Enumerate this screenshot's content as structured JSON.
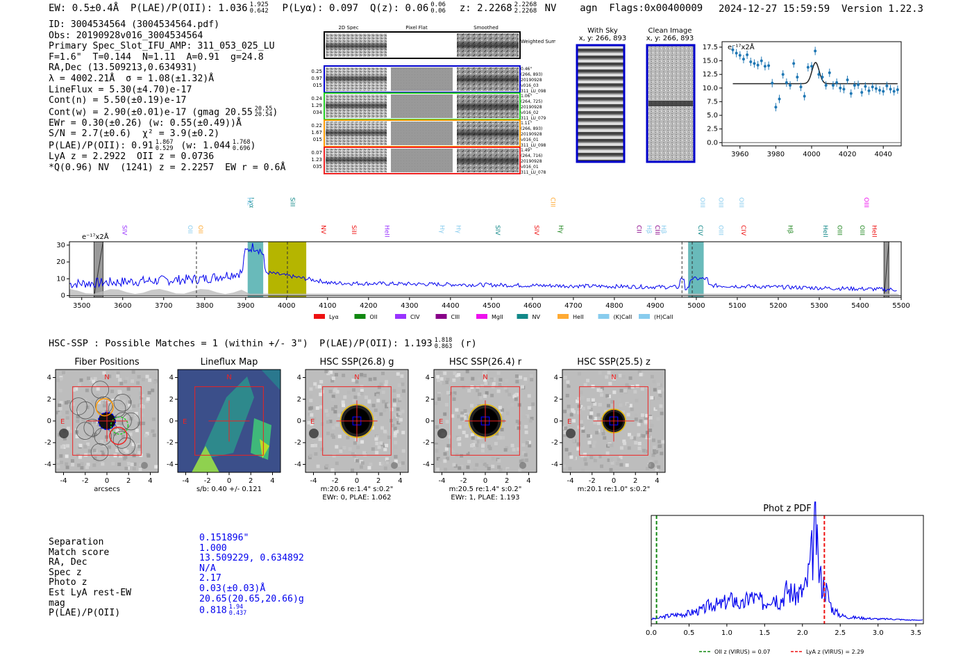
{
  "header": {
    "line": "EW: 0.5±0.4Å  P(LAE)/P(OII): 1.036",
    "plae_sup": "1.925",
    "plae_sub": "0.642",
    "plya": "P(Lyα): 0.097",
    "qz": "Q(z): 0.06",
    "qz_sup": "0.06",
    "qz_sub": "0.06",
    "z": "z: 2.2268",
    "z_sup": "2.2268",
    "z_sub": "2.2268",
    "tail": "NV    agn  Flags:0x00400009",
    "date_version": "2024-12-27 15:59:59  Version 1.22.3"
  },
  "info": {
    "id": "ID: 3004534564 (3004534564.pdf)",
    "obs": "Obs: 20190928v016_3004534564",
    "slot": "Primary Spec_Slot_IFU_AMP: 311_053_025_LU",
    "params": "F=1.6\"  T=0.144  N=1.11  A=0.91  g=24.8",
    "radec": "RA,Dec (13.509213,0.634931)",
    "lambda": "λ = 4002.21Å  σ = 1.08(±1.32)Å",
    "lineflux": "LineFlux = 5.30(±4.70)e-17",
    "contn": "Cont(n) = 5.50(±0.19)e-17",
    "contw": "Cont(w) = 2.90(±0.01)e-17 (gmag 20.55",
    "contw_sup": "20.55",
    "contw_sub": "20.54",
    "ewr": "EWr = 0.30(±0.26) (w: 0.55(±0.49))Å",
    "sn": "S/N = 2.7(±0.6)  χ² = 3.9(±0.2)",
    "plae": "P(LAE)/P(OII): 0.91",
    "plae_sup": "1.867",
    "plae_sub": "0.529",
    "plae_w": "(w: 1.044",
    "plae_w_sup": "1.768",
    "plae_w_sub": "0.696",
    "lyaz": "LyA z = 2.2922  OII z = 0.0736",
    "qnv": "*Q(0.96) NV  (1241) z = 2.2257  EW r = 0.6Å"
  },
  "cutouts": {
    "headers": [
      "2D Spec",
      "Pixel Flat",
      "Smoothed"
    ],
    "weighted": "Weighted Sum",
    "rows": [
      {
        "left": [
          "0.25",
          "0.97",
          "015"
        ],
        "right": [
          "0.46\"",
          "(266, 893)",
          "20190928",
          "v016_03",
          "311_LU_098"
        ],
        "color": "#0000cc"
      },
      {
        "left": [
          "0.24",
          "1.29",
          "034"
        ],
        "right": [
          "1.06\"",
          "(264, 725)",
          "20190928",
          "v016_02",
          "311_LU_079"
        ],
        "color": "#22cc22"
      },
      {
        "left": [
          "0.22",
          "1.67",
          "015"
        ],
        "right": [
          "1.11\"",
          "(266, 893)",
          "20190928",
          "v016_01",
          "311_LU_098"
        ],
        "color": "#ff9900"
      },
      {
        "left": [
          "0.07",
          "1.23",
          "035"
        ],
        "right": [
          "1.49\"",
          "(264, 716)",
          "20190928",
          "v016_01",
          "311_LU_078"
        ],
        "color": "#ee2222"
      }
    ],
    "with_sky": "With Sky",
    "clean": "Clean Image",
    "xy": "x, y: 266, 893"
  },
  "zoom_spec": {
    "unit": "e⁻¹⁷x2Å",
    "xticks": [
      "3960",
      "3980",
      "4000",
      "4020",
      "4040"
    ],
    "yticks": [
      "0.0",
      "2.5",
      "5.0",
      "7.5",
      "10.0",
      "12.5",
      "15.0",
      "17.5"
    ],
    "xlim": [
      3950,
      4050
    ],
    "ylim": [
      -0.6,
      18.5
    ],
    "points": [
      {
        "x": 3956,
        "y": 17.0
      },
      {
        "x": 3958,
        "y": 16.4
      },
      {
        "x": 3960,
        "y": 16.0
      },
      {
        "x": 3962,
        "y": 15.3
      },
      {
        "x": 3964,
        "y": 16.1
      },
      {
        "x": 3966,
        "y": 14.8
      },
      {
        "x": 3968,
        "y": 14.5
      },
      {
        "x": 3970,
        "y": 14.2
      },
      {
        "x": 3972,
        "y": 15.0
      },
      {
        "x": 3974,
        "y": 14.0
      },
      {
        "x": 3976,
        "y": 14.1
      },
      {
        "x": 3978,
        "y": 10.9
      },
      {
        "x": 3980,
        "y": 6.5
      },
      {
        "x": 3982,
        "y": 8.0
      },
      {
        "x": 3984,
        "y": 12.5
      },
      {
        "x": 3986,
        "y": 11.0
      },
      {
        "x": 3988,
        "y": 10.5
      },
      {
        "x": 3990,
        "y": 14.5
      },
      {
        "x": 3992,
        "y": 12.0
      },
      {
        "x": 3994,
        "y": 10.2
      },
      {
        "x": 3996,
        "y": 8.5
      },
      {
        "x": 3998,
        "y": 13.8
      },
      {
        "x": 4000,
        "y": 14.0
      },
      {
        "x": 4002,
        "y": 16.8
      },
      {
        "x": 4004,
        "y": 12.5
      },
      {
        "x": 4006,
        "y": 12.0
      },
      {
        "x": 4008,
        "y": 10.5
      },
      {
        "x": 4010,
        "y": 12.8
      },
      {
        "x": 4012,
        "y": 10.5
      },
      {
        "x": 4014,
        "y": 11.0
      },
      {
        "x": 4016,
        "y": 10.0
      },
      {
        "x": 4018,
        "y": 9.8
      },
      {
        "x": 4020,
        "y": 11.5
      },
      {
        "x": 4022,
        "y": 9.0
      },
      {
        "x": 4024,
        "y": 10.5
      },
      {
        "x": 4026,
        "y": 10.6
      },
      {
        "x": 4028,
        "y": 9.2
      },
      {
        "x": 4030,
        "y": 10.3
      },
      {
        "x": 4032,
        "y": 9.5
      },
      {
        "x": 4034,
        "y": 10.2
      },
      {
        "x": 4036,
        "y": 9.9
      },
      {
        "x": 4038,
        "y": 9.6
      },
      {
        "x": 4040,
        "y": 9.4
      },
      {
        "x": 4042,
        "y": 10.4
      },
      {
        "x": 4044,
        "y": 9.8
      },
      {
        "x": 4046,
        "y": 9.4
      },
      {
        "x": 4048,
        "y": 9.7
      }
    ]
  },
  "full_spec": {
    "unit": "e⁻¹⁷x2Å",
    "xlim": [
      3470,
      5500
    ],
    "ylim": [
      -1,
      32
    ],
    "xticks": [
      "3500",
      "3600",
      "3700",
      "3800",
      "3900",
      "4000",
      "4100",
      "4200",
      "4300",
      "4400",
      "4500",
      "4600",
      "4700",
      "4800",
      "4900",
      "5000",
      "5100",
      "5200",
      "5300",
      "5400",
      "5500"
    ],
    "yticks": [
      "0",
      "10",
      "20",
      "30"
    ],
    "lines_low": [
      {
        "label": "SIV",
        "x": 3600,
        "c": "#9933ff"
      },
      {
        "label": "OII",
        "x": 3760,
        "c": "#88ccee"
      },
      {
        "label": "OII",
        "x": 3785,
        "c": "#ffaa33"
      },
      {
        "label": "NV",
        "x": 4085,
        "c": "#ee1111"
      },
      {
        "label": "SiII",
        "x": 4160,
        "c": "#ee1111"
      },
      {
        "label": "HeII",
        "x": 4240,
        "c": "#9933ff"
      },
      {
        "label": "Hγ",
        "x": 4375,
        "c": "#88ccee"
      },
      {
        "label": "Hγ",
        "x": 4415,
        "c": "#88ccee"
      },
      {
        "label": "SIV",
        "x": 4510,
        "c": "#118888"
      },
      {
        "label": "SIV",
        "x": 4605,
        "c": "#ee1111"
      },
      {
        "label": "Hγ",
        "x": 4665,
        "c": "#228822"
      },
      {
        "label": "CII",
        "x": 4855,
        "c": "#880088"
      },
      {
        "label": "Hβ",
        "x": 4880,
        "c": "#88ccee"
      },
      {
        "label": "CIII",
        "x": 4900,
        "c": "#880088"
      },
      {
        "label": "Hβ",
        "x": 4915,
        "c": "#88ccee"
      },
      {
        "label": "CIV",
        "x": 5005,
        "c": "#118888"
      },
      {
        "label": "OIII",
        "x": 5055,
        "c": "#88ccee"
      },
      {
        "label": "CIV",
        "x": 5110,
        "c": "#ee1111"
      },
      {
        "label": "Hβ",
        "x": 5225,
        "c": "#228822"
      },
      {
        "label": "HeII",
        "x": 5310,
        "c": "#118888"
      },
      {
        "label": "OIII",
        "x": 5345,
        "c": "#228822"
      },
      {
        "label": "OIII",
        "x": 5400,
        "c": "#228822"
      },
      {
        "label": "HeII",
        "x": 5430,
        "c": "#ee1111"
      }
    ],
    "lines_high": [
      {
        "label": "Lyα",
        "x": 3910,
        "c": "#118888"
      },
      {
        "label": "H2",
        "x": 3905,
        "c": "#88ccee"
      },
      {
        "label": "SiII",
        "x": 4010,
        "c": "#118888"
      },
      {
        "label": "CIII",
        "x": 4645,
        "c": "#ffaa33"
      },
      {
        "label": "OIII",
        "x": 5010,
        "c": "#88ccee"
      },
      {
        "label": "OIII",
        "x": 5055,
        "c": "#88ccee"
      },
      {
        "label": "OIII",
        "x": 5105,
        "c": "#88ccee"
      },
      {
        "label": "OIII",
        "x": 5410,
        "c": "#ee11ee"
      }
    ],
    "legend": [
      {
        "label": "Lyα",
        "c": "#ee1111"
      },
      {
        "label": "OII",
        "c": "#118811"
      },
      {
        "label": "CIV",
        "c": "#9933ff"
      },
      {
        "label": "CIII",
        "c": "#880088"
      },
      {
        "label": "MgII",
        "c": "#ee11ee"
      },
      {
        "label": "NV",
        "c": "#118888"
      },
      {
        "label": "HeII",
        "c": "#ffaa33"
      },
      {
        "label": "(K)CaII",
        "c": "#88ccee"
      },
      {
        "label": "(H)CaII",
        "c": "#88ccee"
      }
    ]
  },
  "hsc": {
    "title": "HSC-SSP : Possible Matches = 1 (within +/- 3\")  P(LAE)/P(OII): 1.193",
    "title_sup": "1.818",
    "title_sub": "0.863",
    "title_tail": "(r)",
    "ticks": [
      "-4",
      "-2",
      "0",
      "2",
      "4"
    ],
    "panels": [
      {
        "title": "Fiber Positions",
        "sub1": "arcsecs",
        "sub2": ""
      },
      {
        "title": "Lineflux Map",
        "sub1": "s/b: 0.40 +/- 0.121",
        "sub2": ""
      },
      {
        "title": "HSC SSP(26.8) g",
        "sub1": "m:20.6  re:1.4\"  s:0.2\"",
        "sub2": "EWr: 0, PLAE: 1.062"
      },
      {
        "title": "HSC SSP(26.4) r",
        "sub1": "m:20.5  re:1.4\"  s:0.2\"",
        "sub2": "EWr: 1, PLAE: 1.193"
      },
      {
        "title": "HSC SSP(25.5) z",
        "sub1": "m:20.1  re:1.0\"  s:0.2\"",
        "sub2": ""
      }
    ],
    "n": "N",
    "e": "E"
  },
  "match": {
    "labels": [
      "Separation",
      "Match score",
      "RA, Dec",
      "Spec z",
      "Photo z",
      "Est LyA rest-EW",
      "mag",
      "P(LAE)/P(OII)"
    ],
    "values": [
      "0.151896\"",
      "1.000",
      "13.509229, 0.634892",
      "N/A",
      "2.17",
      "0.03(±0.03)Å",
      "20.65(20.65,20.66)g",
      "0.818"
    ],
    "plae_sup": "1.94",
    "plae_sub": "0.437"
  },
  "chart_data": [
    {
      "type": "scatter",
      "title": "",
      "xlabel": "",
      "ylabel": "e⁻¹⁷x2Å",
      "xlim": [
        3950,
        4050
      ],
      "ylim": [
        -0.6,
        18.5
      ],
      "note": "zoomed 1D spectrum with Gaussian fit, peak near 4002 Å"
    },
    {
      "type": "line",
      "title": "",
      "xlabel": "",
      "ylabel": "e⁻¹⁷x2Å",
      "xlim": [
        3470,
        5500
      ],
      "ylim": [
        -1,
        32
      ]
    },
    {
      "type": "line",
      "title": "Phot z PDF",
      "xlim": [
        0,
        3.6
      ],
      "xticks": [
        "0.0",
        "0.5",
        "1.0",
        "1.5",
        "2.0",
        "2.5",
        "3.0",
        "3.5"
      ],
      "legend": [
        {
          "label": "OII z (VIRUS) = 0.07",
          "c": "#118811",
          "x": 0.07
        },
        {
          "label": "LyA z (VIRUS) = 2.29",
          "c": "#ee1111",
          "x": 2.29
        }
      ],
      "x": [
        0.0,
        0.1,
        0.2,
        0.3,
        0.4,
        0.5,
        0.6,
        0.7,
        0.8,
        0.9,
        1.0,
        1.1,
        1.2,
        1.3,
        1.4,
        1.5,
        1.6,
        1.7,
        1.8,
        1.9,
        2.0,
        2.05,
        2.1,
        2.15,
        2.18,
        2.2,
        2.25,
        2.3,
        2.35,
        2.4,
        2.5,
        2.6,
        2.8,
        3.0,
        3.2,
        3.4,
        3.6
      ],
      "y": [
        0.02,
        0.03,
        0.05,
        0.06,
        0.07,
        0.08,
        0.1,
        0.12,
        0.18,
        0.16,
        0.2,
        0.22,
        0.15,
        0.25,
        0.22,
        0.18,
        0.28,
        0.2,
        0.32,
        0.26,
        0.3,
        0.35,
        0.55,
        0.78,
        1.0,
        0.6,
        0.4,
        0.35,
        0.22,
        0.12,
        0.06,
        0.04,
        0.03,
        0.02,
        0.02,
        0.01,
        0.01
      ]
    }
  ]
}
